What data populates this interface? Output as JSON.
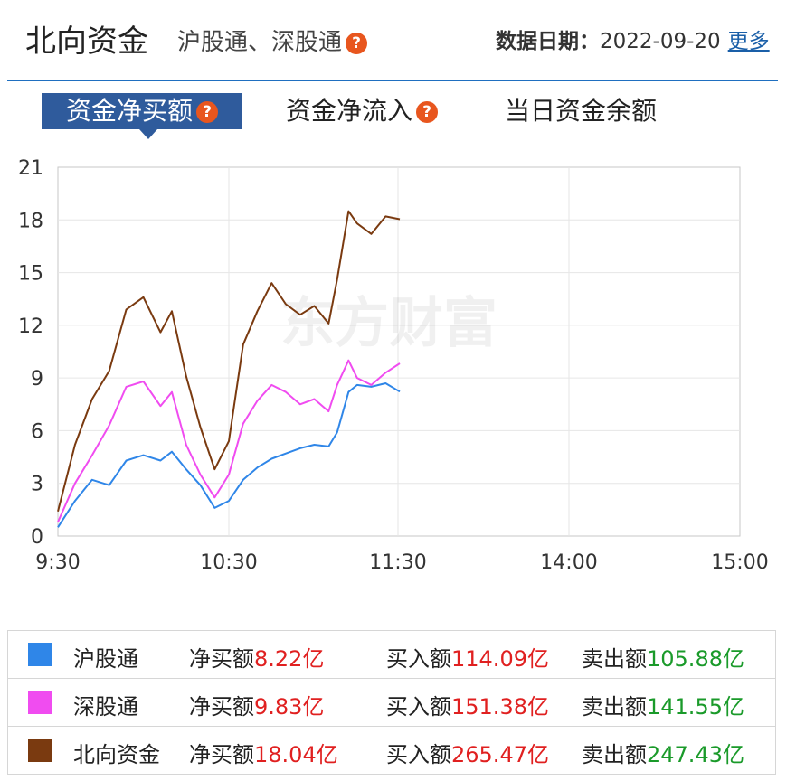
{
  "header": {
    "title": "北向资金",
    "subtitle": "沪股通、深股通",
    "help_glyph": "?",
    "date_label": "数据日期：",
    "date_value": "2022-09-20",
    "more_link": "更多"
  },
  "tabs": [
    {
      "label": "资金净买额",
      "active": true
    },
    {
      "label": "资金净流入",
      "active": false
    },
    {
      "label": "当日资金余额",
      "active": false
    }
  ],
  "watermark": "东方财富",
  "colors": {
    "hgt": "#2f86e8",
    "sgt": "#f04cf0",
    "north": "#7a3a10",
    "tab_active": "#2f5b9c",
    "red": "#e02020",
    "green": "#1a9a2a"
  },
  "chart_data": {
    "type": "line",
    "x_ticks": [
      "9:30",
      "10:30",
      "11:30",
      "14:00",
      "15:00"
    ],
    "y_ticks": [
      0,
      3,
      6,
      9,
      12,
      15,
      18,
      21
    ],
    "ylim": [
      0,
      21
    ],
    "grid": true,
    "series": [
      {
        "name": "沪股通",
        "color": "#2f86e8",
        "points": [
          [
            "9:30",
            0.5
          ],
          [
            "9:36",
            2.0
          ],
          [
            "9:42",
            3.2
          ],
          [
            "9:48",
            2.9
          ],
          [
            "9:54",
            4.3
          ],
          [
            "10:00",
            4.6
          ],
          [
            "10:06",
            4.3
          ],
          [
            "10:10",
            4.8
          ],
          [
            "10:15",
            3.8
          ],
          [
            "10:20",
            2.9
          ],
          [
            "10:25",
            1.6
          ],
          [
            "10:30",
            2.0
          ],
          [
            "10:35",
            3.2
          ],
          [
            "10:40",
            3.9
          ],
          [
            "10:45",
            4.4
          ],
          [
            "10:50",
            4.7
          ],
          [
            "10:55",
            5.0
          ],
          [
            "11:00",
            5.2
          ],
          [
            "11:05",
            5.1
          ],
          [
            "11:08",
            5.9
          ],
          [
            "11:12",
            8.2
          ],
          [
            "11:15",
            8.6
          ],
          [
            "11:20",
            8.5
          ],
          [
            "11:25",
            8.7
          ],
          [
            "11:30",
            8.22
          ]
        ]
      },
      {
        "name": "深股通",
        "color": "#f04cf0",
        "points": [
          [
            "9:30",
            0.8
          ],
          [
            "9:36",
            3.0
          ],
          [
            "9:42",
            4.6
          ],
          [
            "9:48",
            6.3
          ],
          [
            "9:54",
            8.5
          ],
          [
            "10:00",
            8.8
          ],
          [
            "10:06",
            7.4
          ],
          [
            "10:10",
            8.2
          ],
          [
            "10:15",
            5.2
          ],
          [
            "10:20",
            3.5
          ],
          [
            "10:25",
            2.2
          ],
          [
            "10:30",
            3.5
          ],
          [
            "10:35",
            6.4
          ],
          [
            "10:40",
            7.7
          ],
          [
            "10:45",
            8.6
          ],
          [
            "10:50",
            8.2
          ],
          [
            "10:55",
            7.5
          ],
          [
            "11:00",
            7.8
          ],
          [
            "11:05",
            7.1
          ],
          [
            "11:08",
            8.6
          ],
          [
            "11:12",
            10.0
          ],
          [
            "11:15",
            9.0
          ],
          [
            "11:20",
            8.6
          ],
          [
            "11:25",
            9.3
          ],
          [
            "11:30",
            9.83
          ]
        ]
      },
      {
        "name": "北向资金",
        "color": "#7a3a10",
        "points": [
          [
            "9:30",
            1.4
          ],
          [
            "9:36",
            5.2
          ],
          [
            "9:42",
            7.8
          ],
          [
            "9:48",
            9.4
          ],
          [
            "9:54",
            12.9
          ],
          [
            "10:00",
            13.6
          ],
          [
            "10:06",
            11.6
          ],
          [
            "10:10",
            12.8
          ],
          [
            "10:15",
            9.1
          ],
          [
            "10:20",
            6.2
          ],
          [
            "10:25",
            3.8
          ],
          [
            "10:30",
            5.4
          ],
          [
            "10:35",
            10.9
          ],
          [
            "10:40",
            12.8
          ],
          [
            "10:45",
            14.4
          ],
          [
            "10:50",
            13.2
          ],
          [
            "10:55",
            12.6
          ],
          [
            "11:00",
            13.1
          ],
          [
            "11:05",
            12.1
          ],
          [
            "11:08",
            14.6
          ],
          [
            "11:12",
            18.5
          ],
          [
            "11:15",
            17.8
          ],
          [
            "11:20",
            17.2
          ],
          [
            "11:25",
            18.2
          ],
          [
            "11:30",
            18.04
          ]
        ]
      }
    ]
  },
  "table": [
    {
      "name": "沪股通",
      "net_label": "净买额",
      "net": "8.22亿",
      "buy_label": "买入额",
      "buy": "114.09亿",
      "sell_label": "卖出额",
      "sell": "105.88亿"
    },
    {
      "name": "深股通",
      "net_label": "净买额",
      "net": "9.83亿",
      "buy_label": "买入额",
      "buy": "151.38亿",
      "sell_label": "卖出额",
      "sell": "141.55亿"
    },
    {
      "name": "北向资金",
      "net_label": "净买额",
      "net": "18.04亿",
      "buy_label": "买入额",
      "buy": "265.47亿",
      "sell_label": "卖出额",
      "sell": "247.43亿"
    }
  ]
}
